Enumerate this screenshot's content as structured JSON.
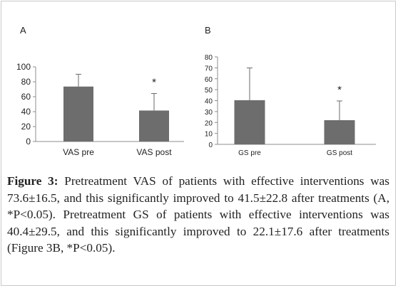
{
  "chart_data": [
    {
      "type": "bar",
      "panel_label": "A",
      "categories": [
        "VAS pre",
        "VAS post"
      ],
      "values": [
        73.6,
        41.5
      ],
      "error_bars": [
        16.5,
        22.8
      ],
      "significance_marks": [
        "",
        "*"
      ],
      "ylim": [
        0,
        100
      ],
      "yticks": [
        0,
        20,
        40,
        60,
        80,
        100
      ],
      "bar_color": "#6d6d6d"
    },
    {
      "type": "bar",
      "panel_label": "B",
      "categories": [
        "GS pre",
        "GS post"
      ],
      "values": [
        40.4,
        22.1
      ],
      "error_bars": [
        29.5,
        17.6
      ],
      "significance_marks": [
        "",
        "*"
      ],
      "ylim": [
        0,
        80
      ],
      "yticks": [
        0,
        10,
        20,
        30,
        40,
        50,
        60,
        70,
        80
      ],
      "bar_color": "#6d6d6d"
    }
  ],
  "caption": {
    "label": "Figure 3:",
    "text": " Pretreatment VAS of patients with effective interventions was 73.6±16.5, and this significantly improved to 41.5±22.8 after treatments (A, *P<0.05). Pretreatment GS of patients with effective interventions was 40.4±29.5, and this significantly improved to 22.1±17.6 after treatments (Figure 3B, *P<0.05)."
  }
}
